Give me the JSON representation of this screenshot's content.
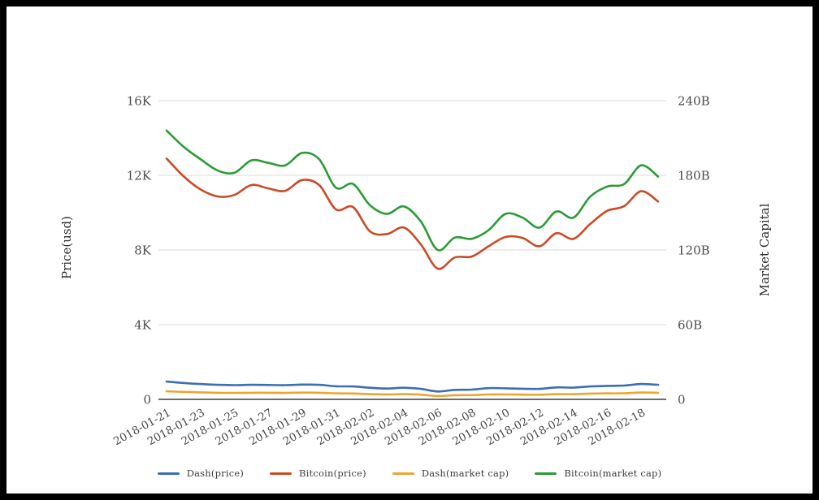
{
  "chart_data": {
    "type": "line",
    "x": [
      "2018-01-21",
      "2018-01-22",
      "2018-01-23",
      "2018-01-24",
      "2018-01-25",
      "2018-01-26",
      "2018-01-27",
      "2018-01-28",
      "2018-01-29",
      "2018-01-30",
      "2018-01-31",
      "2018-02-01",
      "2018-02-02",
      "2018-02-03",
      "2018-02-04",
      "2018-02-05",
      "2018-02-06",
      "2018-02-07",
      "2018-02-08",
      "2018-02-09",
      "2018-02-10",
      "2018-02-11",
      "2018-02-12",
      "2018-02-13",
      "2018-02-14",
      "2018-02-15",
      "2018-02-16",
      "2018-02-17",
      "2018-02-18",
      "2018-02-19"
    ],
    "x_tick_labels": [
      "2018-01-21",
      "2018-01-23",
      "2018-01-25",
      "2018-01-27",
      "2018-01-29",
      "2018-01-31",
      "2018-02-02",
      "2018-02-04",
      "2018-02-06",
      "2018-02-08",
      "2018-02-10",
      "2018-02-12",
      "2018-02-14",
      "2018-02-16",
      "2018-02-18"
    ],
    "series": [
      {
        "name": "Dash(price)",
        "axis": "left",
        "color": "#3c6eb4",
        "values": [
          950,
          880,
          820,
          780,
          760,
          780,
          770,
          760,
          790,
          780,
          700,
          690,
          620,
          580,
          620,
          560,
          420,
          510,
          520,
          600,
          590,
          570,
          560,
          640,
          630,
          690,
          720,
          740,
          820,
          780
        ]
      },
      {
        "name": "Bitcoin(price)",
        "axis": "left",
        "color": "#cb4a26",
        "values": [
          12900,
          11950,
          11250,
          10870,
          10950,
          11480,
          11300,
          11170,
          11750,
          11480,
          10170,
          10300,
          9000,
          8850,
          9200,
          8300,
          7000,
          7600,
          7650,
          8200,
          8700,
          8650,
          8200,
          8900,
          8600,
          9400,
          10100,
          10350,
          11150,
          10600
        ]
      },
      {
        "name": "Dash(market cap)",
        "axis": "right",
        "color": "#eca62f",
        "values": [
          6.5,
          6.0,
          5.6,
          5.3,
          5.2,
          5.3,
          5.3,
          5.2,
          5.4,
          5.3,
          4.8,
          4.7,
          4.2,
          4.0,
          4.2,
          3.8,
          2.7,
          3.3,
          3.4,
          3.9,
          3.9,
          3.8,
          3.7,
          4.2,
          4.2,
          4.6,
          4.8,
          4.9,
          5.5,
          5.3
        ]
      },
      {
        "name": "Bitcoin(market cap)",
        "axis": "right",
        "color": "#2a9b36",
        "values": [
          216,
          203,
          193,
          184,
          182,
          192,
          190,
          188,
          198,
          193,
          170,
          173,
          156,
          149,
          155,
          143,
          120,
          130,
          129,
          136,
          149,
          146,
          138,
          151,
          146,
          163,
          171,
          173,
          188,
          179
        ]
      }
    ],
    "left_axis": {
      "label": "Price(usd)",
      "min": 0,
      "max": 16000,
      "ticks_top_down": [
        "16K",
        "12K",
        "8K",
        "4K",
        "0"
      ]
    },
    "right_axis": {
      "label": "Market Capital",
      "min": 0,
      "max": 240,
      "ticks_top_down": [
        "240B",
        "180B",
        "120B",
        "60B",
        "0"
      ]
    },
    "grid": true,
    "legend_position": "bottom"
  },
  "colors": {
    "grid_line": "#d8d8d8",
    "axis_line": "#3c3c3c",
    "tick_text": "#4c4c4c",
    "frame_border": "#000000",
    "background": "#ffffff"
  }
}
